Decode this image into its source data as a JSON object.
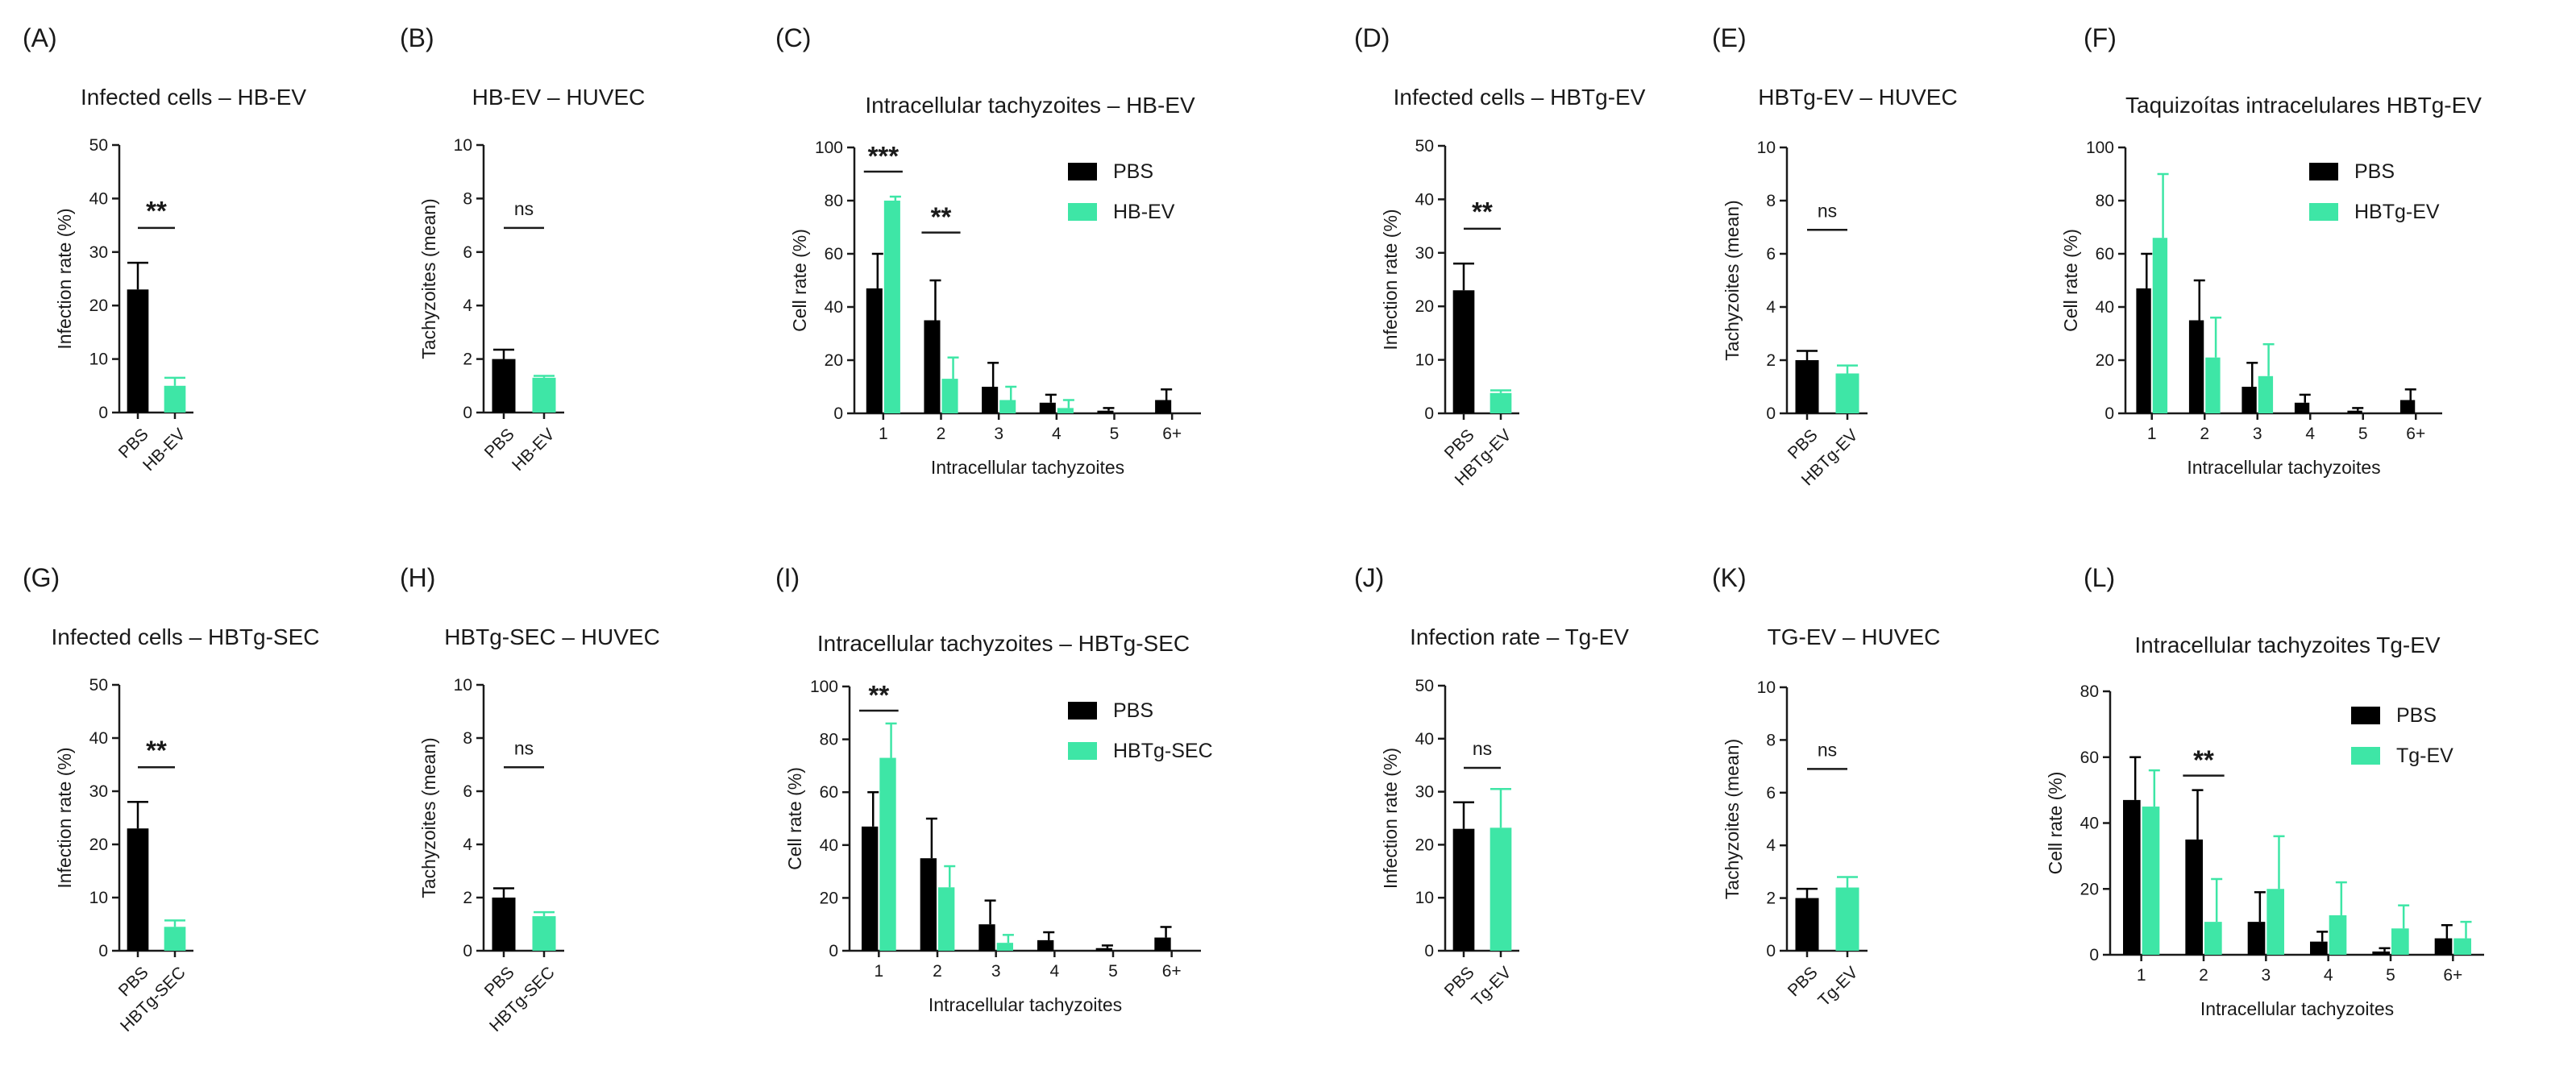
{
  "colors": {
    "pbs": "#000000",
    "treat": "#3ee6a6",
    "axis": "#1a1a1a"
  },
  "chart_data": [
    {
      "panel": "(A)",
      "type": "bar",
      "title": "Infected cells – HB-EV",
      "ylabel": "Infection rate (%)",
      "ylim": [
        0,
        50
      ],
      "yticks": [
        0,
        10,
        20,
        30,
        40,
        50
      ],
      "categories": [
        "PBS",
        "HB-EV"
      ],
      "values": [
        23,
        5
      ],
      "errors": [
        5,
        1.5
      ],
      "significance": {
        "text": "**",
        "type": "stars"
      }
    },
    {
      "panel": "(B)",
      "type": "bar",
      "title": "HB-EV – HUVEC",
      "ylabel": "Tachyzoites (mean)",
      "ylim": [
        0,
        10
      ],
      "yticks": [
        0,
        2,
        4,
        6,
        8,
        10
      ],
      "categories": [
        "PBS",
        "HB-EV"
      ],
      "values": [
        2,
        1.3
      ],
      "errors": [
        0.35,
        0.07
      ],
      "significance": {
        "text": "ns",
        "type": "ns"
      }
    },
    {
      "panel": "(C)",
      "type": "grouped-bar",
      "title": "Intracellular tachyzoites – HB-EV",
      "xlabel": "Intracellular tachyzoites",
      "ylabel": "Cell rate (%)",
      "ylim": [
        0,
        100
      ],
      "yticks": [
        0,
        20,
        40,
        60,
        80,
        100
      ],
      "categories": [
        "1",
        "2",
        "3",
        "4",
        "5",
        "6+"
      ],
      "series": [
        {
          "name": "PBS",
          "values": [
            47,
            35,
            10,
            4,
            1,
            5
          ],
          "errors": [
            13,
            15,
            9,
            3,
            1,
            4
          ]
        },
        {
          "name": "HB-EV",
          "values": [
            80,
            13,
            5,
            2,
            0,
            0
          ],
          "errors": [
            1.5,
            8,
            5,
            3,
            0,
            0
          ]
        }
      ],
      "annotations": [
        {
          "category": "1",
          "text": "***"
        },
        {
          "category": "2",
          "text": "**"
        }
      ],
      "legend": "top-right"
    },
    {
      "panel": "(D)",
      "type": "bar",
      "title": "Infected cells – HBTg-EV",
      "ylabel": "Infection rate (%)",
      "ylim": [
        0,
        50
      ],
      "yticks": [
        0,
        10,
        20,
        30,
        40,
        50
      ],
      "categories": [
        "PBS",
        "HBTg-EV"
      ],
      "values": [
        23,
        3.8
      ],
      "errors": [
        5,
        0.5
      ],
      "significance": {
        "text": "**",
        "type": "stars"
      }
    },
    {
      "panel": "(E)",
      "type": "bar",
      "title": "HBTg-EV – HUVEC",
      "ylabel": "Tachyzoites (mean)",
      "ylim": [
        0,
        10
      ],
      "yticks": [
        0,
        2,
        4,
        6,
        8,
        10
      ],
      "categories": [
        "PBS",
        "HBTg-EV"
      ],
      "values": [
        2,
        1.5
      ],
      "errors": [
        0.35,
        0.3
      ],
      "significance": {
        "text": "ns",
        "type": "ns"
      }
    },
    {
      "panel": "(F)",
      "type": "grouped-bar",
      "title": "Taquizoítas intracelulares HBTg-EV",
      "xlabel": "Intracellular tachyzoites",
      "ylabel": "Cell rate (%)",
      "ylim": [
        0,
        100
      ],
      "yticks": [
        0,
        20,
        40,
        60,
        80,
        100
      ],
      "categories": [
        "1",
        "2",
        "3",
        "4",
        "5",
        "6+"
      ],
      "series": [
        {
          "name": "PBS",
          "values": [
            47,
            35,
            10,
            4,
            1,
            5
          ],
          "errors": [
            13,
            15,
            9,
            3,
            1,
            4
          ]
        },
        {
          "name": "HBTg-EV",
          "values": [
            66,
            21,
            14,
            0,
            0,
            0
          ],
          "errors": [
            24,
            15,
            12,
            0,
            0,
            0
          ]
        }
      ],
      "annotations": [],
      "legend": "top-right"
    },
    {
      "panel": "(G)",
      "type": "bar",
      "title": "Infected cells – HBTg-SEC",
      "ylabel": "Infection rate (%)",
      "ylim": [
        0,
        50
      ],
      "yticks": [
        0,
        10,
        20,
        30,
        40,
        50
      ],
      "categories": [
        "PBS",
        "HBTg-SEC"
      ],
      "values": [
        23,
        4.5
      ],
      "errors": [
        5,
        1.2
      ],
      "significance": {
        "text": "**",
        "type": "stars"
      }
    },
    {
      "panel": "(H)",
      "type": "bar",
      "title": "HBTg-SEC – HUVEC",
      "ylabel": "Tachyzoites (mean)",
      "ylim": [
        0,
        10
      ],
      "yticks": [
        0,
        2,
        4,
        6,
        8,
        10
      ],
      "categories": [
        "PBS",
        "HBTg-SEC"
      ],
      "values": [
        2,
        1.3
      ],
      "errors": [
        0.35,
        0.15
      ],
      "significance": {
        "text": "ns",
        "type": "ns"
      }
    },
    {
      "panel": "(I)",
      "type": "grouped-bar",
      "title": "Intracellular tachyzoites – HBTg-SEC",
      "xlabel": "Intracellular tachyzoites",
      "ylabel": "Cell rate (%)",
      "ylim": [
        0,
        100
      ],
      "yticks": [
        0,
        20,
        40,
        60,
        80,
        100
      ],
      "categories": [
        "1",
        "2",
        "3",
        "4",
        "5",
        "6+"
      ],
      "series": [
        {
          "name": "PBS",
          "values": [
            47,
            35,
            10,
            4,
            1,
            5
          ],
          "errors": [
            13,
            15,
            9,
            3,
            1,
            4
          ]
        },
        {
          "name": "HBTg-SEC",
          "values": [
            73,
            24,
            3,
            0,
            0,
            0
          ],
          "errors": [
            13,
            8,
            3,
            0,
            0,
            0
          ]
        }
      ],
      "annotations": [
        {
          "category": "1",
          "text": "**"
        }
      ],
      "legend": "top-right"
    },
    {
      "panel": "(J)",
      "type": "bar",
      "title": "Infection rate – Tg-EV",
      "ylabel": "Infection rate (%)",
      "ylim": [
        0,
        50
      ],
      "yticks": [
        0,
        10,
        20,
        30,
        40,
        50
      ],
      "categories": [
        "PBS",
        "Tg-EV"
      ],
      "values": [
        23,
        23.2
      ],
      "errors": [
        5,
        7.3
      ],
      "significance": {
        "text": "ns",
        "type": "ns"
      }
    },
    {
      "panel": "(K)",
      "type": "bar",
      "title": "TG-EV – HUVEC",
      "ylabel": "Tachyzoites (mean)",
      "ylim": [
        0,
        10
      ],
      "yticks": [
        0,
        2,
        4,
        6,
        8,
        10
      ],
      "categories": [
        "PBS",
        "Tg-EV"
      ],
      "values": [
        2,
        2.4
      ],
      "errors": [
        0.35,
        0.4
      ],
      "significance": {
        "text": "ns",
        "type": "ns"
      }
    },
    {
      "panel": "(L)",
      "type": "grouped-bar",
      "title": "Intracellular tachyzoites Tg-EV",
      "xlabel": "Intracellular tachyzoites",
      "ylabel": "Cell rate (%)",
      "ylim": [
        0,
        80
      ],
      "yticks": [
        0,
        20,
        40,
        60,
        80
      ],
      "categories": [
        "1",
        "2",
        "3",
        "4",
        "5",
        "6+"
      ],
      "series": [
        {
          "name": "PBS",
          "values": [
            47,
            35,
            10,
            4,
            1,
            5
          ],
          "errors": [
            13,
            15,
            9,
            3,
            1,
            4
          ]
        },
        {
          "name": "Tg-EV",
          "values": [
            45,
            10,
            20,
            12,
            8,
            5
          ],
          "errors": [
            11,
            13,
            16,
            10,
            7,
            5
          ]
        }
      ],
      "annotations": [
        {
          "category": "2",
          "text": "**"
        }
      ],
      "legend": "top-right"
    }
  ]
}
